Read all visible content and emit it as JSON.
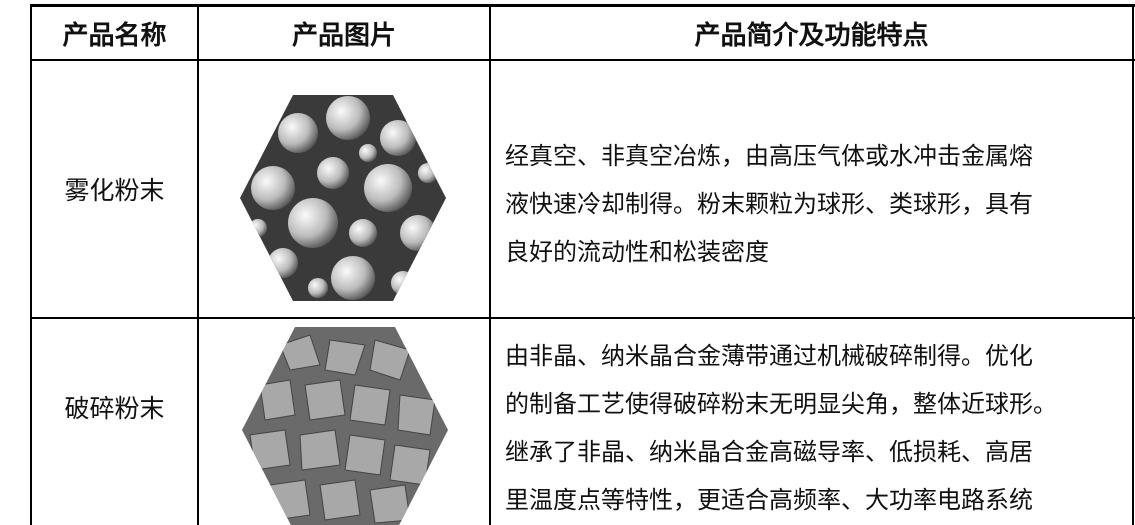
{
  "table": {
    "header": [
      "产品名称",
      "产品图片",
      "产品简介及功能特点"
    ],
    "rows": [
      {
        "name": "雾化粉末",
        "description": [
          "经真空、非真空冶炼，由高压气体或水冲击金属熔",
          "液快速冷却制得。粉末颗粒为球形、类球形，具有",
          "良好的流动性和松装密度"
        ]
      },
      {
        "name": "破碎粉末",
        "description": [
          "由非晶、纳米晶合金薄带通过机械破碎制得。优化",
          "的制备工艺使得破碎粉末无明显尖角，整体近球形。",
          "继承了非晶、纳米晶合金高磁导率、低损耗、高居",
          "里温度点等特性，更适合高频率、大功率电路系统"
        ]
      }
    ]
  }
}
